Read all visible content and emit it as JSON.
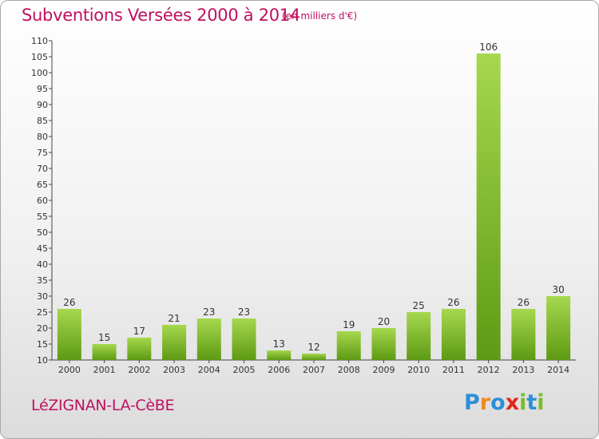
{
  "header": {
    "title": "Subventions Versées 2000 à 2014",
    "unit": "(en milliers d'€)"
  },
  "footer": {
    "commune": "LéZIGNAN-LA-CèBE",
    "logo_text": "Proxiti"
  },
  "colors": {
    "accent": "#c01060",
    "bar_light": "#a6d84e",
    "bar_dark": "#5e9a14",
    "logo": [
      "#2f8fd6",
      "#f08a1c",
      "#2f8fd6",
      "#e0261c",
      "#7cbb2a",
      "#2f8fd6",
      "#7cbb2a"
    ]
  },
  "chart_data": {
    "type": "bar",
    "categories": [
      "2000",
      "2001",
      "2002",
      "2003",
      "2004",
      "2005",
      "2006",
      "2007",
      "2008",
      "2009",
      "2010",
      "2011",
      "2012",
      "2013",
      "2014"
    ],
    "values": [
      26,
      15,
      17,
      21,
      23,
      23,
      13,
      12,
      19,
      20,
      25,
      26,
      106,
      26,
      30
    ],
    "title": "Subventions Versées 2000 à 2014",
    "xlabel": "",
    "ylabel": "",
    "ylim": [
      10,
      110
    ],
    "yticks": [
      10,
      15,
      20,
      25,
      30,
      35,
      40,
      45,
      50,
      55,
      60,
      65,
      70,
      75,
      80,
      85,
      90,
      95,
      100,
      105,
      110
    ],
    "grid": false,
    "data_labels": true
  }
}
